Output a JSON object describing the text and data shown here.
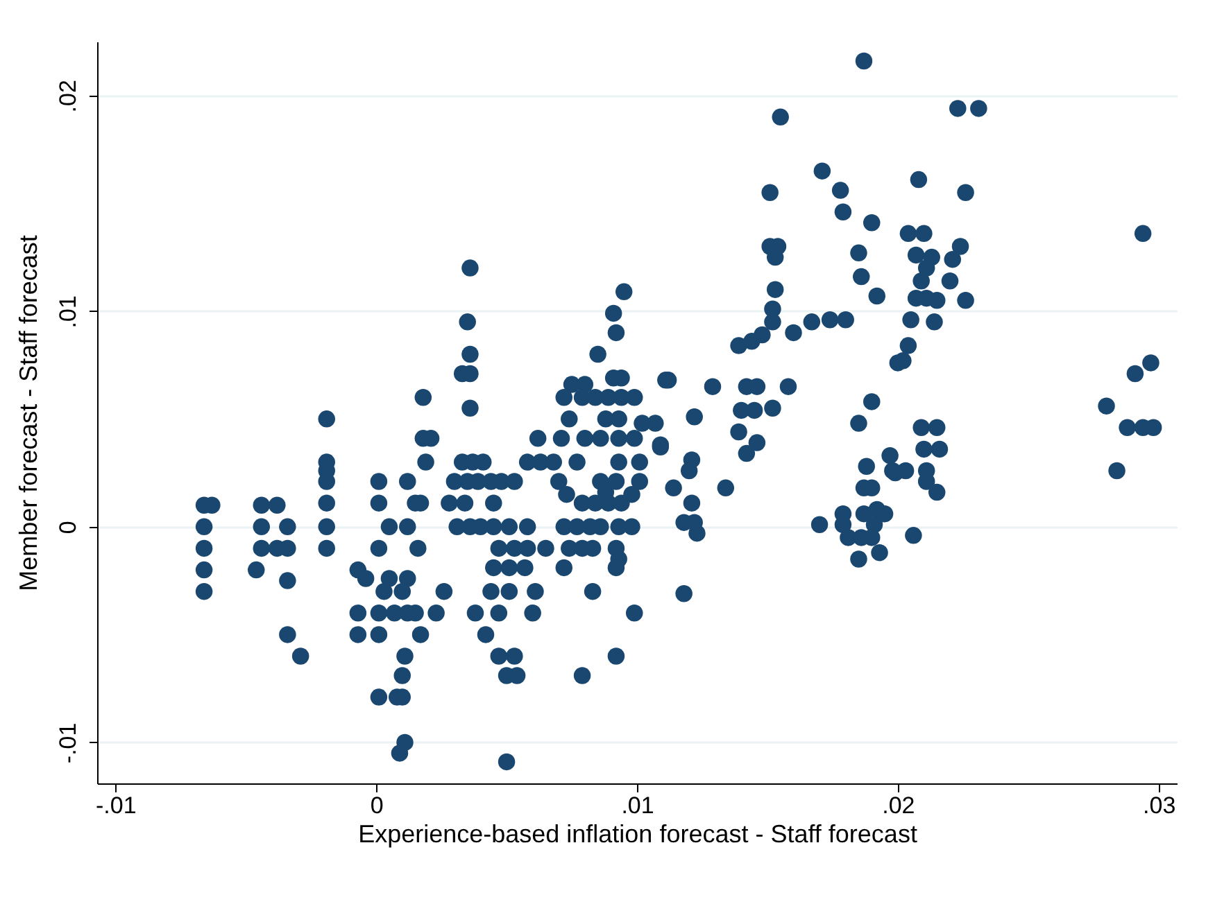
{
  "chart_data": {
    "type": "scatter",
    "xlabel": "Experience-based inflation forecast - Staff forecast",
    "ylabel": "Member forecast - Staff forecast",
    "color": "#1a476f",
    "marker": "circle",
    "grid": "y",
    "xlim": [
      -0.0107,
      0.0307
    ],
    "ylim": [
      -0.0119,
      0.0225
    ],
    "xticks": [
      {
        "value": -0.01,
        "label": "-.01"
      },
      {
        "value": 0,
        "label": "0"
      },
      {
        "value": 0.01,
        "label": ".01"
      },
      {
        "value": 0.02,
        "label": ".02"
      },
      {
        "value": 0.03,
        "label": ".03"
      }
    ],
    "yticks": [
      {
        "value": -0.01,
        "label": "-.01"
      },
      {
        "value": 0,
        "label": "0"
      },
      {
        "value": 0.01,
        "label": ".01"
      },
      {
        "value": 0.02,
        "label": ".02"
      }
    ],
    "x": [
      -0.0066,
      -0.0066,
      -0.0066,
      -0.0066,
      -0.0066,
      -0.0063,
      -0.0044,
      -0.0044,
      -0.0044,
      -0.0046,
      -0.0038,
      -0.0038,
      -0.0034,
      -0.0034,
      -0.0034,
      -0.0034,
      -0.0029,
      -0.0019,
      -0.0019,
      -0.0019,
      -0.0019,
      -0.0019,
      -0.0019,
      -0.0019,
      -0.0007,
      -0.0004,
      -0.0007,
      -0.0007,
      0.0001,
      0.0001,
      0.0001,
      0.0001,
      0.0001,
      0.0005,
      0.0005,
      0.0003,
      0.0007,
      0.0001,
      0.0008,
      0.0012,
      0.0012,
      0.0012,
      0.001,
      0.0012,
      0.0011,
      0.001,
      0.001,
      0.0011,
      0.0009,
      0.0015,
      0.0016,
      0.0015,
      0.0017,
      0.0018,
      0.0036,
      0.0035,
      0.0036,
      0.0033,
      0.0036,
      0.0036,
      0.0018,
      0.0021,
      0.0019,
      0.0033,
      0.0037,
      0.0041,
      0.003,
      0.0035,
      0.0039,
      0.0044,
      0.0048,
      0.0053,
      0.0017,
      0.0028,
      0.0034,
      0.0045,
      0.0031,
      0.0036,
      0.004,
      0.0045,
      0.0051,
      0.0058,
      0.0047,
      0.0053,
      0.0058,
      0.0065,
      0.0045,
      0.0051,
      0.0057,
      0.0026,
      0.0044,
      0.0051,
      0.0061,
      0.0023,
      0.0038,
      0.0047,
      0.006,
      0.0042,
      0.0047,
      0.0053,
      0.005,
      0.0054,
      0.005,
      0.0095,
      0.0091,
      0.0092,
      0.0085,
      0.0091,
      0.0094,
      0.0075,
      0.008,
      0.0072,
      0.0079,
      0.0084,
      0.0089,
      0.0094,
      0.0099,
      0.0111,
      0.0074,
      0.0088,
      0.0093,
      0.0102,
      0.0107,
      0.0062,
      0.0071,
      0.008,
      0.0086,
      0.0093,
      0.0099,
      0.0109,
      0.0058,
      0.0063,
      0.0068,
      0.0077,
      0.0093,
      0.0101,
      0.007,
      0.0086,
      0.0092,
      0.0101,
      0.0073,
      0.0088,
      0.0098,
      0.0079,
      0.0084,
      0.0089,
      0.0094,
      0.0072,
      0.0077,
      0.0082,
      0.0086,
      0.0093,
      0.0098,
      0.0074,
      0.0079,
      0.0083,
      0.0092,
      0.0093,
      0.0072,
      0.0092,
      0.0083,
      0.0099,
      0.0092,
      0.0079,
      0.0151,
      0.0178,
      0.0179,
      0.019,
      0.0151,
      0.0154,
      0.0153,
      0.0153,
      0.0152,
      0.0152,
      0.0148,
      0.0144,
      0.0139,
      0.016,
      0.0167,
      0.0174,
      0.018,
      0.0185,
      0.0186,
      0.0192,
      0.02,
      0.0112,
      0.0129,
      0.0142,
      0.0146,
      0.0158,
      0.014,
      0.0145,
      0.0152,
      0.0122,
      0.0139,
      0.0146,
      0.0142,
      0.0109,
      0.0121,
      0.012,
      0.0114,
      0.0134,
      0.0121,
      0.0118,
      0.0122,
      0.0123,
      0.0118,
      0.019,
      0.0185,
      0.0197,
      0.0188,
      0.0199,
      0.0187,
      0.019,
      0.0179,
      0.0187,
      0.0192,
      0.0195,
      0.017,
      0.0179,
      0.0191,
      0.0181,
      0.0186,
      0.019,
      0.0185,
      0.0193,
      0.0187,
      0.0223,
      0.0231,
      0.0155,
      0.0171,
      0.0208,
      0.0226,
      0.0204,
      0.021,
      0.0207,
      0.0213,
      0.0221,
      0.0224,
      0.0211,
      0.0209,
      0.022,
      0.0207,
      0.0211,
      0.0215,
      0.0226,
      0.0205,
      0.0214,
      0.0204,
      0.0202,
      0.0294,
      0.0297,
      0.0291,
      0.028,
      0.0288,
      0.0294,
      0.0298,
      0.0284,
      0.0209,
      0.0215,
      0.021,
      0.0216,
      0.0198,
      0.0203,
      0.0211,
      0.0211,
      0.0215,
      0.0206
    ],
    "values": [
      0.001,
      0,
      -0.001,
      -0.002,
      -0.003,
      0.001,
      0.001,
      0,
      -0.001,
      -0.002,
      0.001,
      -0.001,
      0,
      -0.001,
      -0.0025,
      -0.005,
      -0.006,
      0.005,
      0.003,
      0.0026,
      0.0021,
      0.0011,
      0,
      -0.001,
      -0.002,
      -0.0024,
      -0.004,
      -0.005,
      0.0021,
      0.0011,
      -0.001,
      -0.004,
      -0.005,
      0,
      -0.0024,
      -0.003,
      -0.004,
      -0.0079,
      -0.0079,
      0.0021,
      0,
      -0.0024,
      -0.003,
      -0.004,
      -0.006,
      -0.0069,
      -0.0079,
      -0.01,
      -0.0105,
      0.0011,
      -0.001,
      -0.004,
      -0.005,
      0.006,
      0.012,
      0.0095,
      0.008,
      0.0071,
      0.0071,
      0.0055,
      0.0041,
      0.0041,
      0.003,
      0.003,
      0.003,
      0.003,
      0.0021,
      0.0021,
      0.0021,
      0.0021,
      0.0021,
      0.0021,
      0.0011,
      0.0011,
      0.0011,
      0.0011,
      0,
      0,
      0,
      0,
      0,
      0,
      -0.001,
      -0.001,
      -0.001,
      -0.001,
      -0.0019,
      -0.0019,
      -0.0019,
      -0.003,
      -0.003,
      -0.003,
      -0.003,
      -0.004,
      -0.004,
      -0.004,
      -0.004,
      -0.005,
      -0.006,
      -0.006,
      -0.0069,
      -0.0069,
      -0.0109,
      0.0109,
      0.0099,
      0.009,
      0.008,
      0.0069,
      0.0069,
      0.0066,
      0.0066,
      0.006,
      0.006,
      0.006,
      0.006,
      0.006,
      0.006,
      0.0068,
      0.005,
      0.005,
      0.005,
      0.0048,
      0.0048,
      0.0041,
      0.0041,
      0.0041,
      0.0041,
      0.0041,
      0.0041,
      0.0037,
      0.003,
      0.003,
      0.003,
      0.003,
      0.003,
      0.003,
      0.0021,
      0.0021,
      0.0021,
      0.0021,
      0.0015,
      0.0016,
      0.0015,
      0.0011,
      0.0011,
      0.0011,
      0.0011,
      0,
      0,
      0,
      0,
      0,
      0,
      -0.001,
      -0.001,
      -0.001,
      -0.001,
      -0.0015,
      -0.0019,
      -0.0019,
      -0.003,
      -0.004,
      -0.006,
      -0.0069,
      0.0155,
      0.0156,
      0.0146,
      0.0141,
      0.013,
      0.013,
      0.0125,
      0.011,
      0.0101,
      0.0095,
      0.0089,
      0.0086,
      0.0084,
      0.009,
      0.0095,
      0.0096,
      0.0096,
      0.0127,
      0.0116,
      0.0107,
      0.0076,
      0.0068,
      0.0065,
      0.0065,
      0.0065,
      0.0065,
      0.0054,
      0.0054,
      0.0055,
      0.0051,
      0.0044,
      0.0039,
      0.0034,
      0.0038,
      0.0031,
      0.0026,
      0.0018,
      0.0018,
      0.0011,
      0.0002,
      0.0002,
      -0.0003,
      -0.0031,
      0.0058,
      0.0048,
      0.0033,
      0.0028,
      0.0025,
      0.0018,
      0.0018,
      0.0006,
      0.0006,
      0.0008,
      0.0006,
      0.0001,
      0.0001,
      0.0001,
      -0.0005,
      -0.0005,
      -0.0005,
      -0.0015,
      -0.0012,
      0.0216,
      0.0194,
      0.0194,
      0.019,
      0.0165,
      0.0161,
      0.0155,
      0.0136,
      0.0136,
      0.0126,
      0.0125,
      0.0124,
      0.013,
      0.012,
      0.0114,
      0.0114,
      0.0106,
      0.0106,
      0.0105,
      0.0105,
      0.0096,
      0.0095,
      0.0084,
      0.0077,
      0.0136,
      0.0076,
      0.0071,
      0.0056,
      0.0046,
      0.0046,
      0.0046,
      0.0026,
      0.0046,
      0.0046,
      0.0036,
      0.0036,
      0.0026,
      0.0026,
      0.0026,
      0.0021,
      0.0016,
      -0.0004
    ]
  }
}
